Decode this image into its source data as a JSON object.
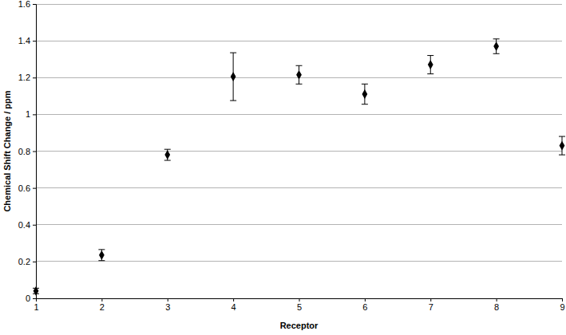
{
  "chart_data": {
    "type": "scatter",
    "x_label": "Receptor",
    "y_label": "Chemical Shift Change / ppm",
    "x": [
      1,
      2,
      3,
      4,
      5,
      6,
      7,
      8,
      9
    ],
    "values": [
      0.04,
      0.235,
      0.78,
      1.205,
      1.215,
      1.11,
      1.27,
      1.37,
      0.83
    ],
    "errors": [
      0.015,
      0.03,
      0.03,
      0.13,
      0.05,
      0.055,
      0.05,
      0.04,
      0.05
    ],
    "color": "#000000",
    "marker": "diamond",
    "xlim": [
      1,
      9
    ],
    "xticks": [
      1,
      2,
      3,
      4,
      5,
      6,
      7,
      8,
      9
    ],
    "ylim": [
      0,
      1.6
    ],
    "yticks": [
      0,
      0.2,
      0.4,
      0.6,
      0.8,
      1,
      1.2,
      1.4,
      1.6
    ],
    "grid": true
  }
}
